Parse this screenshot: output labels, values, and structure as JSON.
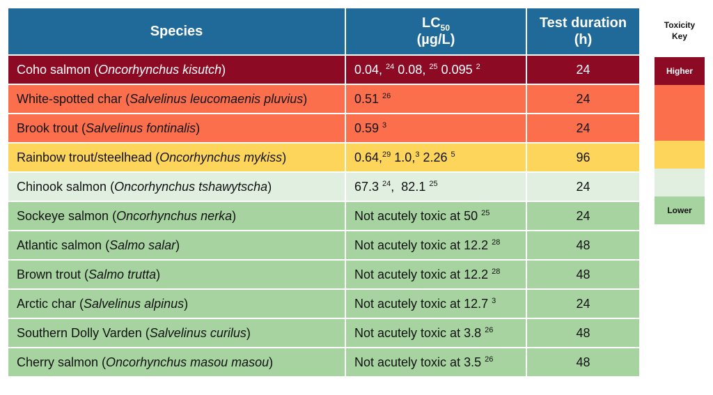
{
  "chart_data": {
    "type": "table",
    "headers": {
      "species": "Species",
      "lc50_main": "LC",
      "lc50_sub": "50",
      "lc50_unit": "(µg/L)",
      "duration": "Test duration",
      "duration_unit": "(h)"
    },
    "rows": [
      {
        "common": "Coho salmon",
        "latin": "Oncorhynchus kisutch",
        "lc50": [
          {
            "v": "0.04, ",
            "r": "24"
          },
          {
            "v": " 0.08, ",
            "r": "25"
          },
          {
            "v": " 0.095 ",
            "r": "2"
          }
        ],
        "duration": "24",
        "level": 1
      },
      {
        "common": "White-spotted char",
        "latin": "Salvelinus leucomaenis pluvius",
        "lc50": [
          {
            "v": "0.51 ",
            "r": "26"
          }
        ],
        "duration": "24",
        "level": 2
      },
      {
        "common": "Brook trout",
        "latin": "Salvelinus fontinalis",
        "lc50": [
          {
            "v": "0.59 ",
            "r": "3"
          }
        ],
        "duration": "24",
        "level": 2
      },
      {
        "common": "Rainbow trout/steelhead",
        "latin": "Oncorhynchus mykiss",
        "lc50": [
          {
            "v": "0.64,",
            "r": "29"
          },
          {
            "v": " 1.0,",
            "r": "3"
          },
          {
            "v": " 2.26 ",
            "r": "5"
          }
        ],
        "duration": "96",
        "level": 3
      },
      {
        "common": "Chinook salmon",
        "latin": "Oncorhynchus tshawytscha",
        "lc50": [
          {
            "v": "67.3 ",
            "r": "24"
          },
          {
            "v": ",  82.1 ",
            "r": "25"
          }
        ],
        "duration": "24",
        "level": 4
      },
      {
        "common": "Sockeye salmon",
        "latin": "Oncorhynchus nerka",
        "lc50": [
          {
            "v": "Not acutely toxic at 50 ",
            "r": "25"
          }
        ],
        "duration": "24",
        "level": 5
      },
      {
        "common": "Atlantic salmon",
        "latin": "Salmo salar",
        "lc50": [
          {
            "v": "Not acutely toxic at 12.2 ",
            "r": "28"
          }
        ],
        "duration": "48",
        "level": 5
      },
      {
        "common": "Brown trout",
        "latin": "Salmo trutta",
        "lc50": [
          {
            "v": "Not acutely toxic at 12.2 ",
            "r": "28"
          }
        ],
        "duration": "48",
        "level": 5
      },
      {
        "common": "Arctic char",
        "latin": "Salvelinus alpinus",
        "lc50": [
          {
            "v": "Not acutely toxic at 12.7 ",
            "r": "3"
          }
        ],
        "duration": "24",
        "level": 5
      },
      {
        "common": "Southern Dolly Varden",
        "latin": "Salvelinus curilus",
        "lc50": [
          {
            "v": "Not acutely toxic at 3.8 ",
            "r": "26"
          }
        ],
        "duration": "48",
        "level": 5
      },
      {
        "common": "Cherry salmon",
        "latin": "Oncorhynchus masou masou",
        "lc50": [
          {
            "v": "Not acutely toxic at 3.5 ",
            "r": "26"
          }
        ],
        "duration": "48",
        "level": 5
      }
    ],
    "level_colors": {
      "1": "#8c0a24",
      "2": "#fc6f4c",
      "3": "#fdd55b",
      "4": "#e0efe0",
      "5": "#a6d3a0"
    },
    "key": {
      "title_line1": "Toxicity",
      "title_line2": "Key",
      "segments": [
        {
          "label": "Higher",
          "color": "#8c0a24",
          "text_color": "#ffffff"
        },
        {
          "label": "",
          "color": "#fc6f4c",
          "text_color": "#111111"
        },
        {
          "label": "",
          "color": "#fc6f4c",
          "text_color": "#111111"
        },
        {
          "label": "",
          "color": "#fdd55b",
          "text_color": "#111111"
        },
        {
          "label": "",
          "color": "#e0efe0",
          "text_color": "#111111"
        },
        {
          "label": "Lower",
          "color": "#a6d3a0",
          "text_color": "#111111"
        }
      ]
    }
  }
}
